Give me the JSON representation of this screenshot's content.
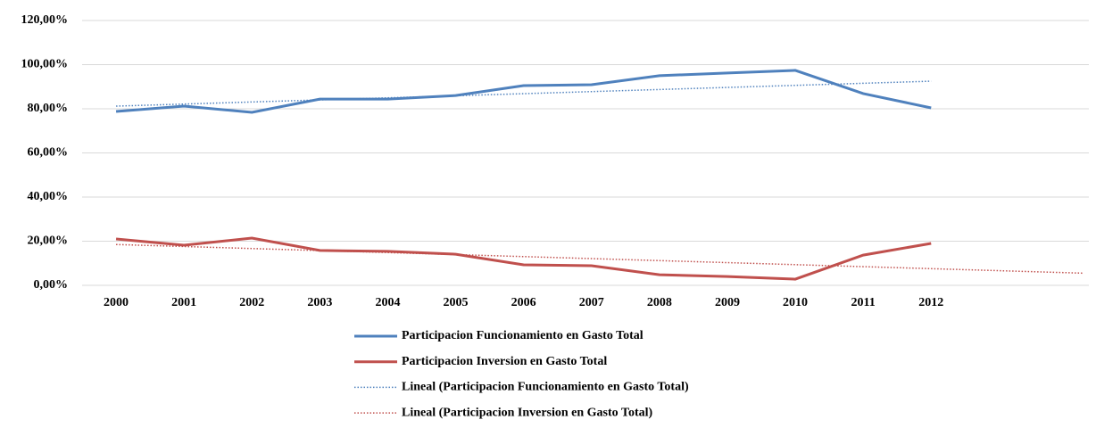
{
  "chart_data": {
    "type": "line",
    "categories": [
      "2000",
      "2001",
      "2002",
      "2003",
      "2004",
      "2005",
      "2006",
      "2007",
      "2008",
      "2009",
      "2010",
      "2011",
      "2012"
    ],
    "series": [
      {
        "name": "Participacion Funcionamiento en Gasto Total",
        "color": "#4f81bd",
        "values": [
          78.8,
          81.2,
          78.4,
          84.4,
          84.4,
          86.0,
          90.5,
          90.9,
          95.0,
          96.2,
          97.4,
          86.9,
          80.4
        ]
      },
      {
        "name": "Participacion Inversion en Gasto Total",
        "color": "#c0504d",
        "values": [
          21.0,
          18.2,
          21.4,
          15.8,
          15.4,
          14.1,
          9.3,
          8.9,
          4.8,
          4.0,
          2.8,
          13.7,
          19.0
        ]
      }
    ],
    "trendlines": [
      {
        "name": "Lineal (Participacion Funcionamiento en Gasto Total)",
        "color": "#4f81bd",
        "start": 81.2,
        "end": 92.5,
        "forward": 0
      },
      {
        "name": "Lineal (Participacion Inversion en Gasto Total)",
        "color": "#c0504d",
        "start": 18.5,
        "end": 5.5,
        "forward": 2.25
      }
    ],
    "ylim": [
      0,
      120
    ],
    "yticks": [
      {
        "value": 0,
        "label": "0,00%"
      },
      {
        "value": 20,
        "label": "20,00%"
      },
      {
        "value": 40,
        "label": "40,00%"
      },
      {
        "value": 60,
        "label": "60,00%"
      },
      {
        "value": 80,
        "label": "80,00%"
      },
      {
        "value": 100,
        "label": "100,00%"
      },
      {
        "value": 120,
        "label": "120,00%"
      }
    ],
    "grid": true
  }
}
